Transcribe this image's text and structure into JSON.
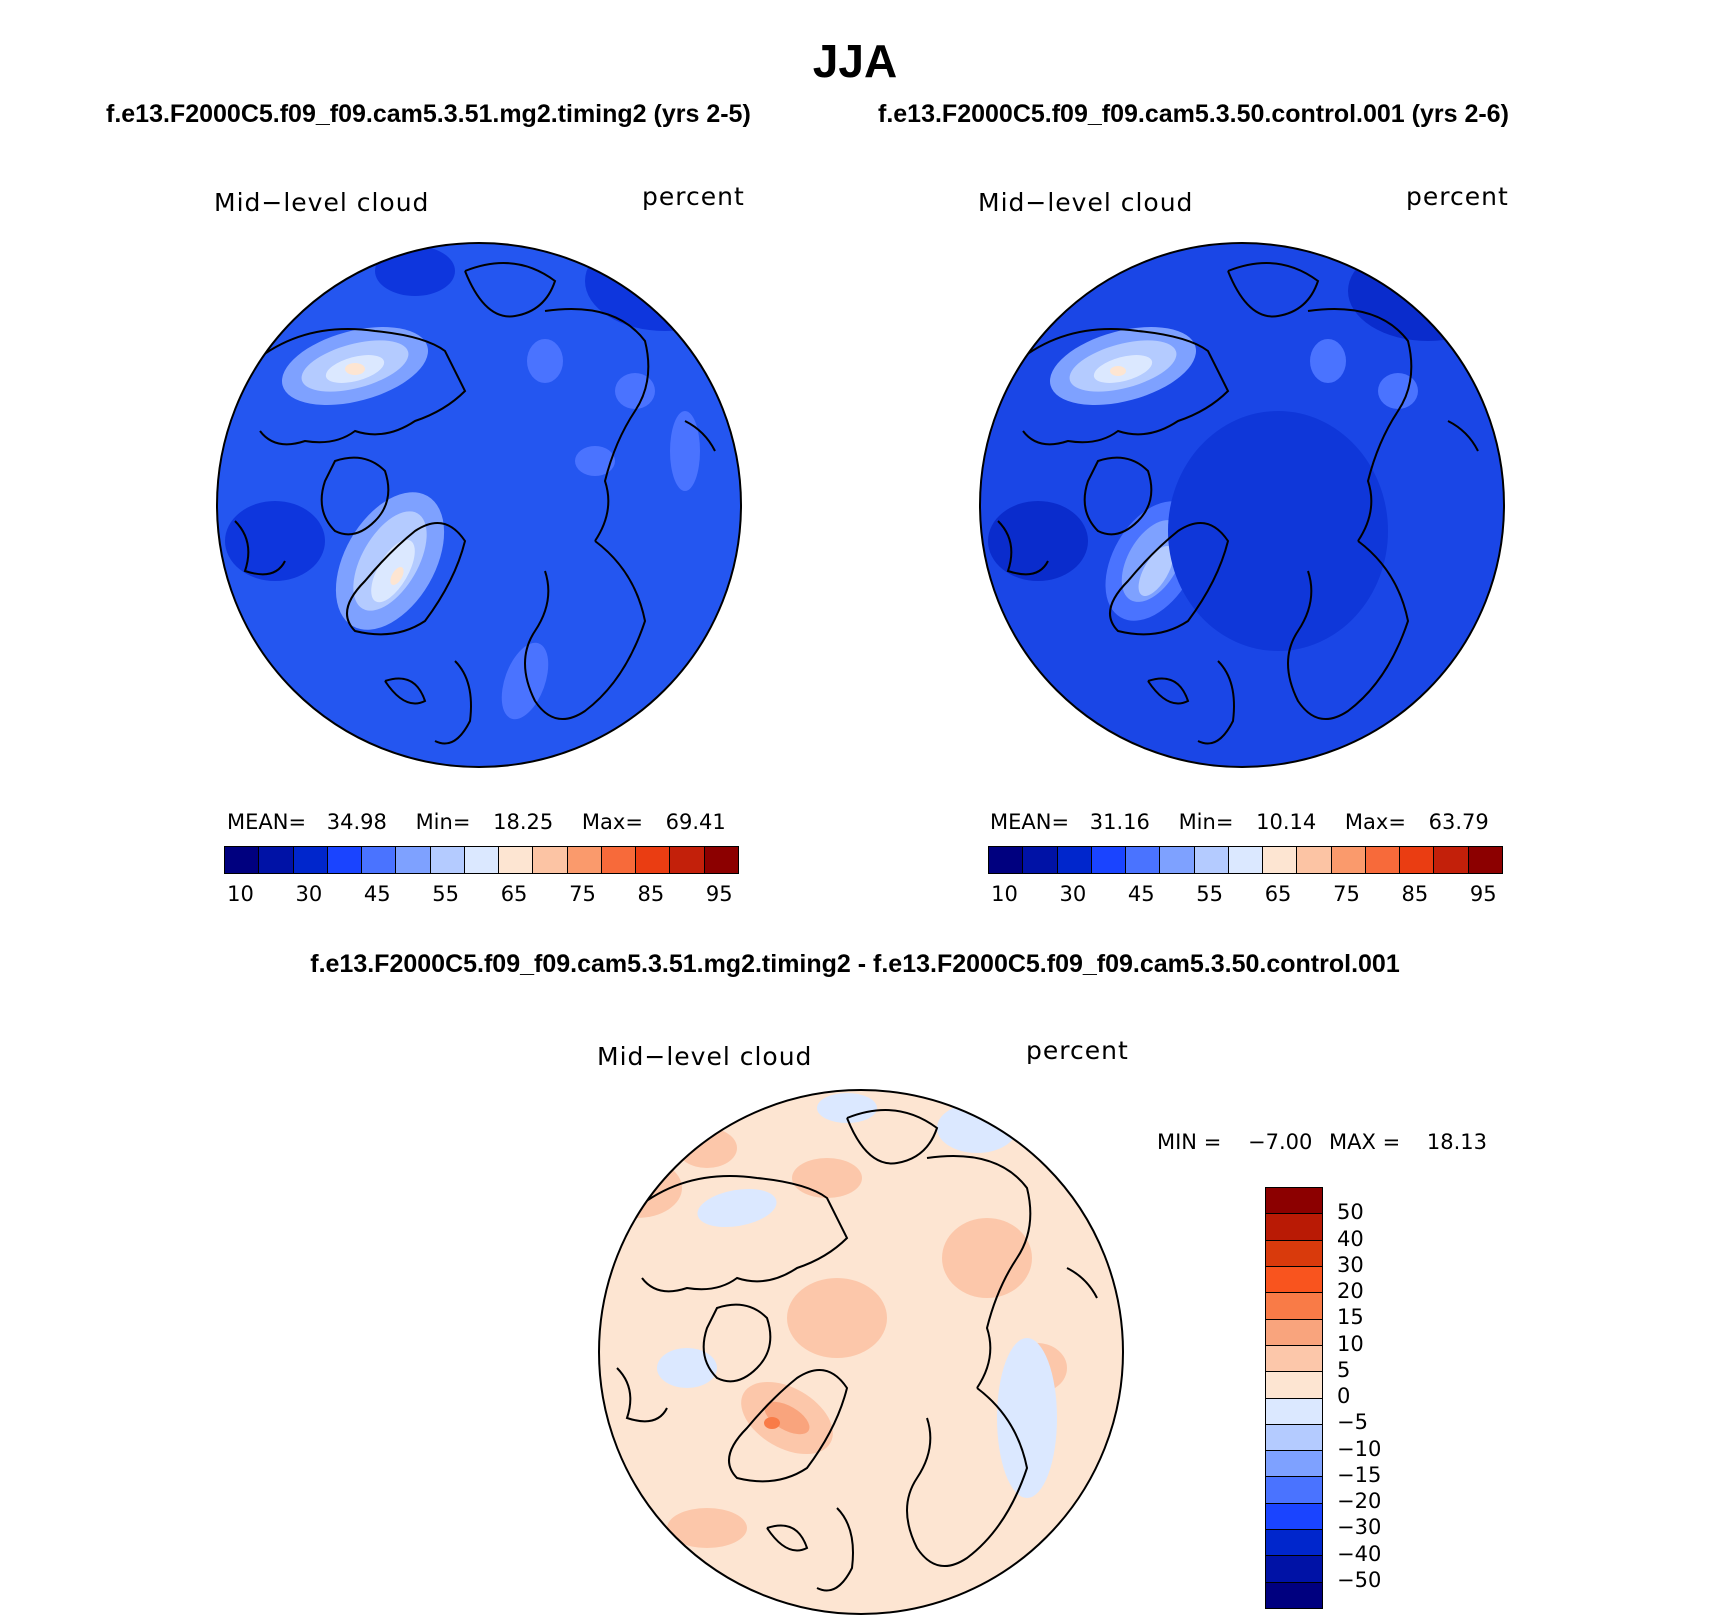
{
  "title": "JJA",
  "panels": [
    {
      "case": "f.e13.F2000C5.f09_f09.cam5.3.51.mg2.timing2 (yrs 2-5)",
      "variable": "Mid−level cloud",
      "units": "percent",
      "stats": {
        "mean_label": "MEAN=",
        "mean": "34.98",
        "min_label": "Min=",
        "min": "18.25",
        "max_label": "Max=",
        "max": "69.41"
      }
    },
    {
      "case": "f.e13.F2000C5.f09_f09.cam5.3.50.control.001 (yrs 2-6)",
      "variable": "Mid−level cloud",
      "units": "percent",
      "stats": {
        "mean_label": "MEAN=",
        "mean": "31.16",
        "min_label": "Min=",
        "min": "10.14",
        "max_label": "Max=",
        "max": "63.79"
      }
    }
  ],
  "diff": {
    "title": "f.e13.F2000C5.f09_f09.cam5.3.51.mg2.timing2 - f.e13.F2000C5.f09_f09.cam5.3.50.control.001",
    "variable": "Mid−level cloud",
    "units": "percent",
    "stats": {
      "min_label": "MIN =",
      "min": "−7.00",
      "max_label": "MAX =",
      "max": "18.13"
    }
  },
  "colorbar_abs": {
    "colors": [
      "#00007f",
      "#0012a6",
      "#0026cc",
      "#1a44ff",
      "#4a73ff",
      "#7ea1ff",
      "#b4cbff",
      "#dbe8ff",
      "#fde5d2",
      "#fcc4a4",
      "#fa9a6c",
      "#f76a3a",
      "#ea3d12",
      "#c3200a",
      "#8c0000"
    ],
    "ticks": [
      "10",
      "30",
      "45",
      "55",
      "65",
      "75",
      "85",
      "95"
    ]
  },
  "colorbar_diff": {
    "colors": [
      "#8c0000",
      "#b91a05",
      "#d93a0c",
      "#f9541e",
      "#f97b47",
      "#f9a47d",
      "#fcc7aa",
      "#fde5d2",
      "#dbe8ff",
      "#b4cbff",
      "#7ea1ff",
      "#4a73ff",
      "#1a44ff",
      "#0026cc",
      "#0012a6",
      "#00007f"
    ],
    "ticks": [
      "50",
      "40",
      "30",
      "20",
      "15",
      "10",
      "5",
      "0",
      "−5",
      "−10",
      "−15",
      "−20",
      "−30",
      "−40",
      "−50"
    ]
  },
  "map_fill": {
    "panel_a_background": "#2456f0",
    "panel_b_background": "#1a46e6",
    "diff_background": "#fde5d2"
  }
}
